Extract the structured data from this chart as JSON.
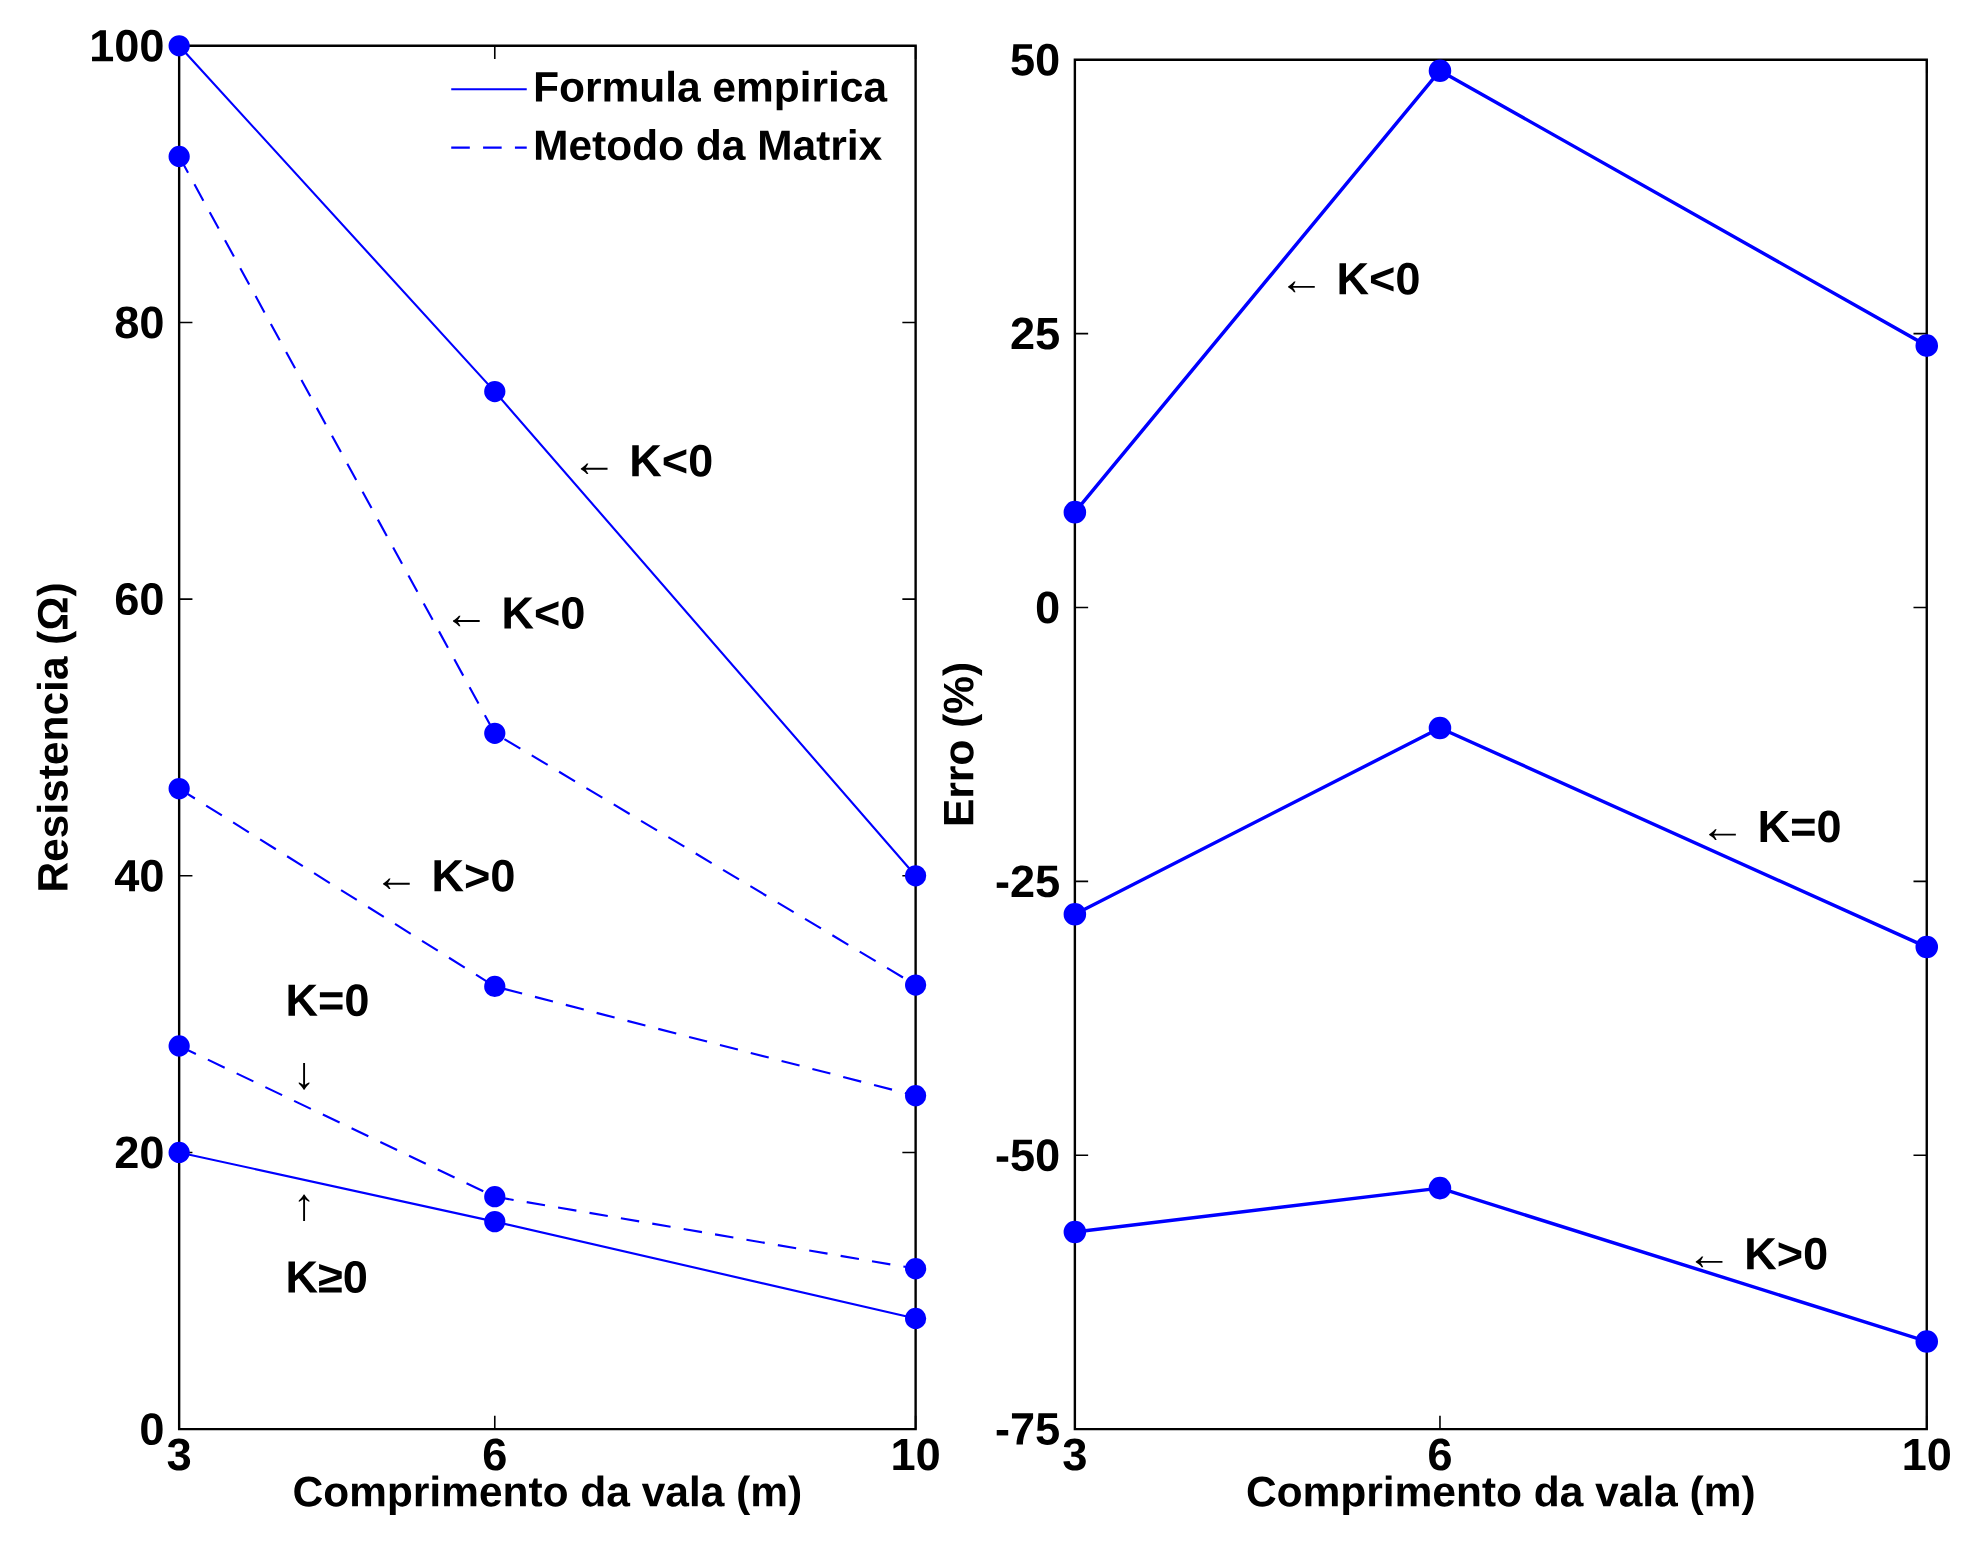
{
  "chart_data": [
    {
      "type": "line",
      "x": [
        3,
        6,
        10
      ],
      "xlabel": "Comprimento da vala (m)",
      "ylabel": "Resistencia (Ω)",
      "xlim": [
        3,
        10
      ],
      "xticks": [
        3,
        6,
        10
      ],
      "ylim": [
        0,
        100
      ],
      "yticks": [
        0,
        20,
        40,
        60,
        80,
        100
      ],
      "grid": false,
      "legend": "top right",
      "marker": "circle",
      "series": [
        {
          "name": "Formula empirica",
          "color": "#0000ff",
          "line_style": "solid",
          "values": [
            100,
            75,
            40
          ]
        },
        {
          "name": "Metodo da Matrix",
          "color": "#0000ff",
          "line_style": "dashed",
          "values": [
            92,
            50.3,
            32.1
          ]
        },
        {
          "color": "#0000ff",
          "line_style": "dashed",
          "values": [
            46.3,
            32,
            24.1
          ]
        },
        {
          "color": "#0000ff",
          "line_style": "dashed",
          "values": [
            27.7,
            16.8,
            11.6
          ]
        },
        {
          "color": "#0000ff",
          "line_style": "solid",
          "values": [
            20,
            15,
            8
          ]
        }
      ],
      "annotations": [
        {
          "text": "← K<0",
          "x": 6.7,
          "y": 70
        },
        "← K<0",
        "← K>0",
        "K=0",
        "↓",
        "↑",
        "K≥0"
      ]
    },
    {
      "type": "line",
      "x": [
        3,
        6,
        10
      ],
      "xlabel": "Comprimento da vala (m)",
      "ylabel": "Erro (%)",
      "xlim": [
        3,
        10
      ],
      "xticks": [
        3,
        6,
        10
      ],
      "ylim": [
        -75,
        50
      ],
      "yticks": [
        -75,
        -50,
        -25,
        0,
        25,
        50
      ],
      "grid": false,
      "marker": "circle",
      "series": [
        {
          "color": "#0000ff",
          "line_style": "solid",
          "values": [
            8.7,
            49,
            23.9
          ]
        },
        {
          "color": "#0000ff",
          "line_style": "solid",
          "values": [
            -28,
            -11,
            -31
          ]
        },
        {
          "color": "#0000ff",
          "line_style": "solid",
          "values": [
            -57,
            -53,
            -67
          ]
        }
      ],
      "annotations": [
        {
          "text": "← K<0",
          "x": 4.65,
          "y": 30
        },
        "← K=0",
        {
          "text": "← K>0",
          "x": 8.0,
          "y": -59
        }
      ]
    }
  ]
}
